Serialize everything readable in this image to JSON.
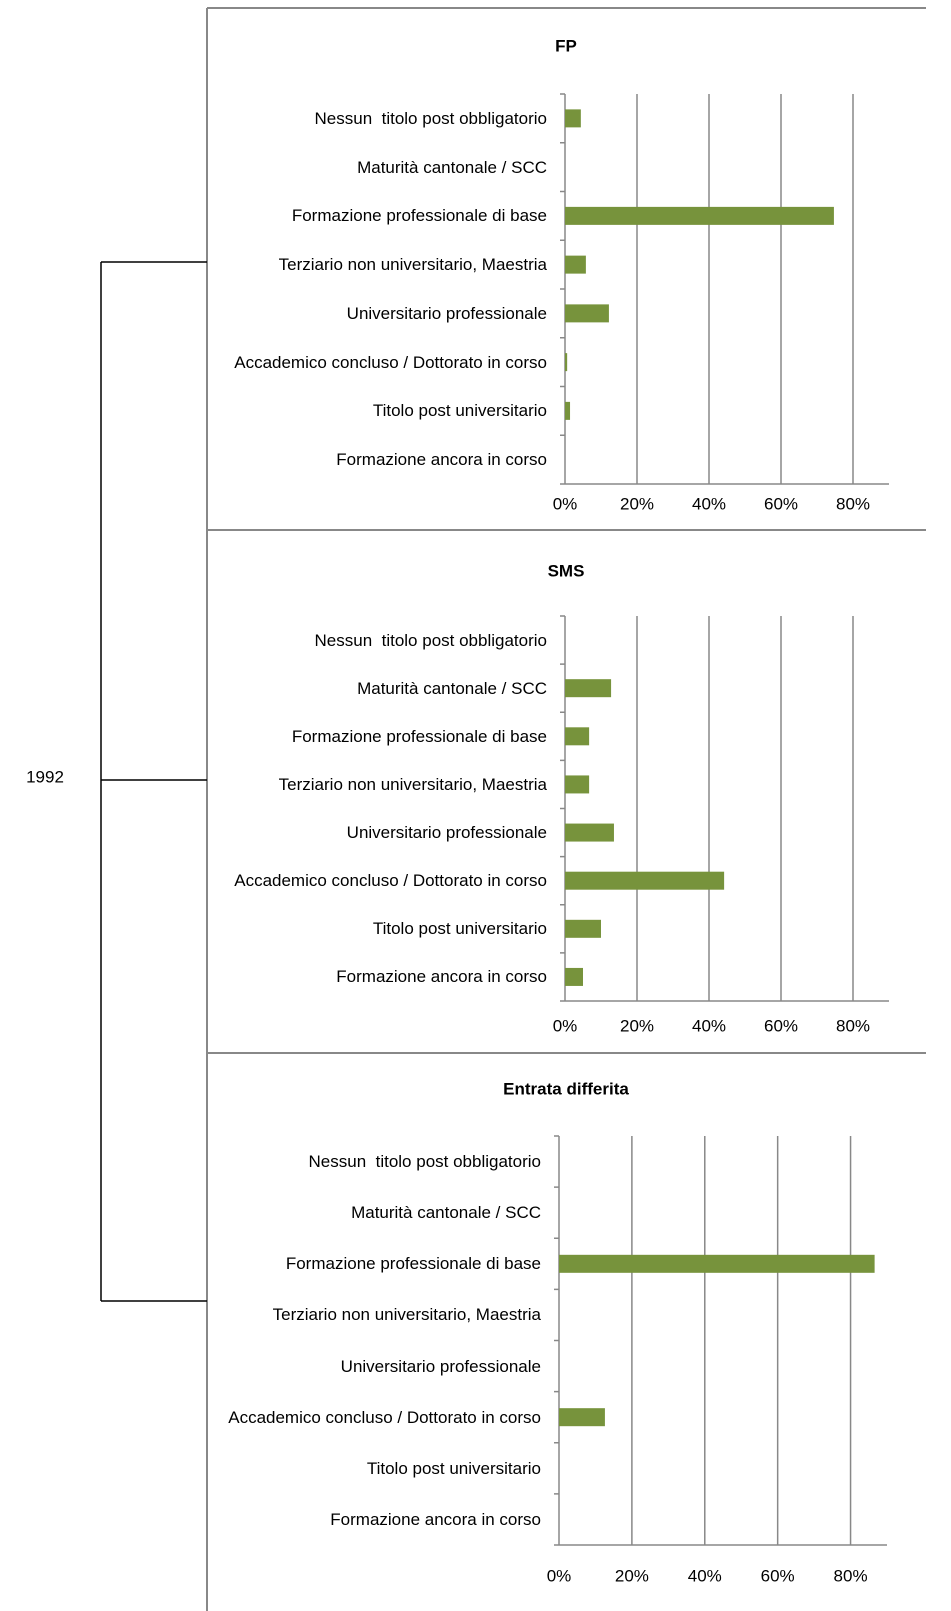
{
  "group_label": "1992",
  "chart_data": [
    {
      "type": "barh",
      "title": "FP",
      "categories": [
        "Nessun  titolo post obbligatorio",
        "Maturità cantonale / SCC",
        "Formazione professionale di base",
        "Terziario non universitario, Maestria",
        "Universitario professionale",
        "Accademico concluso / Dottorato in corso",
        "Titolo post universitario",
        "Formazione ancora in corso"
      ],
      "values": [
        4.4,
        0,
        74.7,
        5.8,
        12.2,
        0.6,
        1.4,
        0
      ],
      "color": "#77933c",
      "xlim": [
        0,
        90
      ],
      "xticks": [
        {
          "value": 0,
          "label": "0%"
        },
        {
          "value": 20,
          "label": "20%"
        },
        {
          "value": 40,
          "label": "40%"
        },
        {
          "value": 60,
          "label": "60%"
        },
        {
          "value": 80,
          "label": "80%"
        }
      ],
      "grid": true
    },
    {
      "type": "barh",
      "title": "SMS",
      "categories": [
        "Nessun  titolo post obbligatorio",
        "Maturità cantonale / SCC",
        "Formazione professionale di base",
        "Terziario non universitario, Maestria",
        "Universitario professionale",
        "Accademico concluso / Dottorato in corso",
        "Titolo post universitario",
        "Formazione ancora in corso"
      ],
      "values": [
        0,
        12.8,
        6.7,
        6.7,
        13.6,
        44.2,
        10,
        5
      ],
      "color": "#77933c",
      "xlim": [
        0,
        90
      ],
      "xticks": [
        {
          "value": 0,
          "label": "0%"
        },
        {
          "value": 20,
          "label": "20%"
        },
        {
          "value": 40,
          "label": "40%"
        },
        {
          "value": 60,
          "label": "60%"
        },
        {
          "value": 80,
          "label": "80%"
        }
      ],
      "grid": true
    },
    {
      "type": "barh",
      "title": "Entrata differita",
      "categories": [
        "Nessun  titolo post obbligatorio",
        "Maturità cantonale / SCC",
        "Formazione professionale di base",
        "Terziario non universitario, Maestria",
        "Universitario professionale",
        "Accademico concluso / Dottorato in corso",
        "Titolo post universitario",
        "Formazione ancora in corso"
      ],
      "values": [
        0,
        0,
        86.6,
        0,
        0,
        12.6,
        0,
        0
      ],
      "color": "#77933c",
      "xlim": [
        0,
        90
      ],
      "xticks": [
        {
          "value": 0,
          "label": "0%"
        },
        {
          "value": 20,
          "label": "20%"
        },
        {
          "value": 40,
          "label": "40%"
        },
        {
          "value": 60,
          "label": "60%"
        },
        {
          "value": 80,
          "label": "80%"
        }
      ],
      "grid": true
    }
  ]
}
